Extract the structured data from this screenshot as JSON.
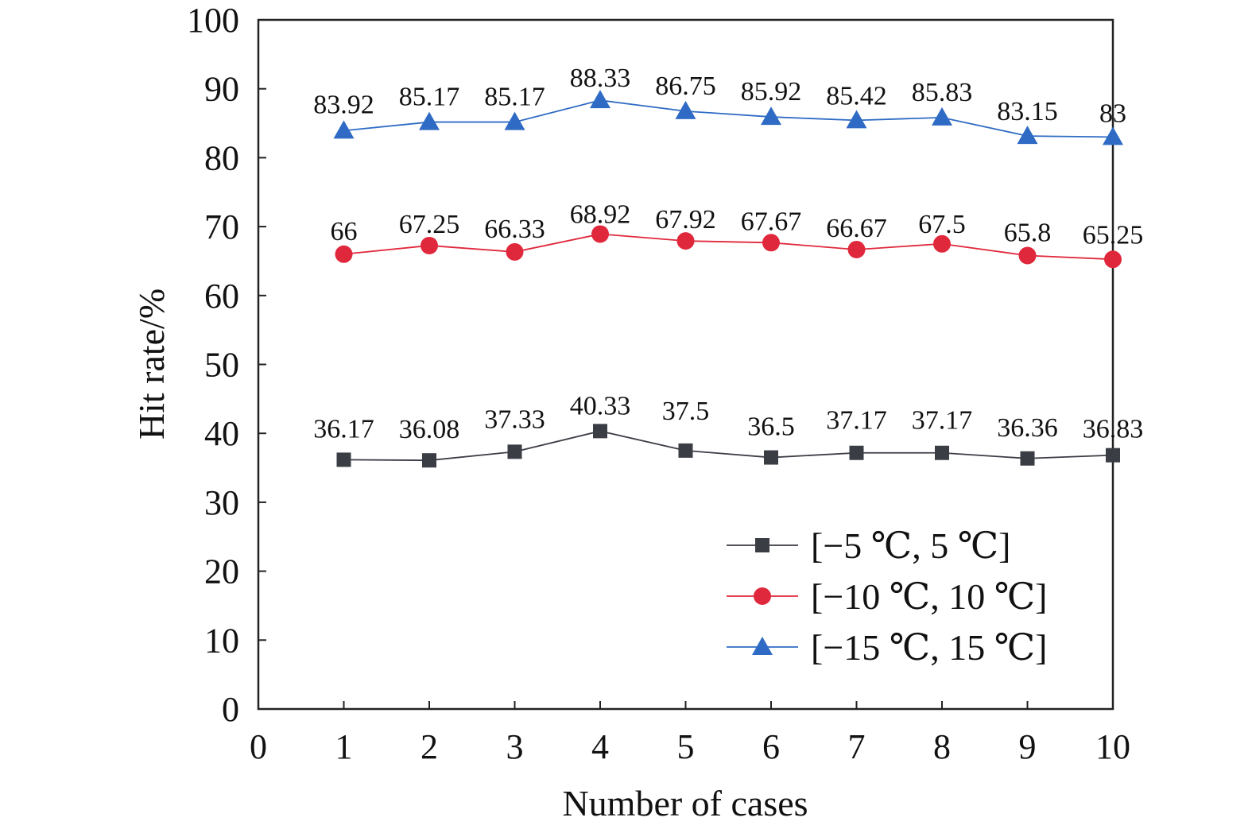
{
  "chart_data": {
    "type": "line",
    "title": "",
    "xlabel": "Number of cases",
    "ylabel": "Hit rate/%",
    "xlim": [
      0,
      10
    ],
    "ylim": [
      0,
      100
    ],
    "x_ticks": [
      "0",
      "1",
      "2",
      "3",
      "4",
      "5",
      "6",
      "7",
      "8",
      "9",
      "10"
    ],
    "y_ticks": [
      "0",
      "10",
      "20",
      "30",
      "40",
      "50",
      "60",
      "70",
      "80",
      "90",
      "100"
    ],
    "x": [
      1,
      2,
      3,
      4,
      5,
      6,
      7,
      8,
      9,
      10
    ],
    "grid": false,
    "legend_position": "bottom-right",
    "series": [
      {
        "name": "[−5 ℃, 5 ℃]",
        "marker": "square",
        "color": "#3b3d45",
        "values": [
          36.17,
          36.08,
          37.33,
          40.33,
          37.5,
          36.5,
          37.17,
          37.17,
          36.36,
          36.83
        ],
        "labels": [
          "36.17",
          "36.08",
          "37.33",
          "40.33",
          "37.5",
          "36.5",
          "37.17",
          "37.17",
          "36.36",
          "36.83"
        ]
      },
      {
        "name": "[−10 ℃, 10 ℃]",
        "marker": "circle",
        "color": "#e0283c",
        "values": [
          66,
          67.25,
          66.33,
          68.92,
          67.92,
          67.67,
          66.67,
          67.5,
          65.8,
          65.25
        ],
        "labels": [
          "66",
          "67.25",
          "66.33",
          "68.92",
          "67.92",
          "67.67",
          "66.67",
          "67.5",
          "65.8",
          "65.25"
        ]
      },
      {
        "name": "[−15 ℃, 15 ℃]",
        "marker": "triangle",
        "color": "#2f6bc4",
        "values": [
          83.92,
          85.17,
          85.17,
          88.33,
          86.75,
          85.92,
          85.42,
          85.83,
          83.15,
          83
        ],
        "labels": [
          "83.92",
          "85.17",
          "85.17",
          "88.33",
          "86.75",
          "85.92",
          "85.42",
          "85.83",
          "83.15",
          "83"
        ]
      }
    ]
  }
}
